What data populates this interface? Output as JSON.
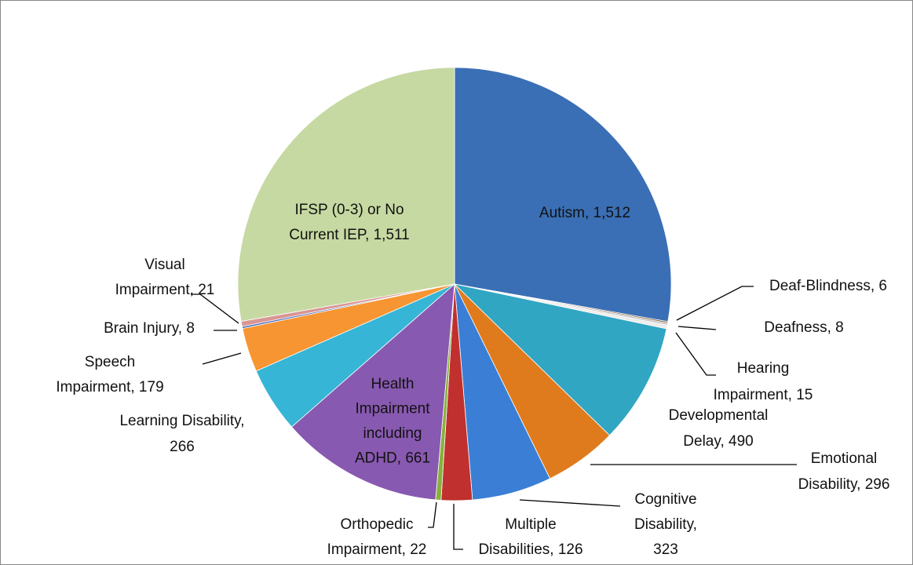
{
  "chart_data": {
    "type": "pie",
    "values": [
      1512,
      6,
      8,
      15,
      490,
      296,
      323,
      126,
      22,
      661,
      266,
      179,
      8,
      21,
      1511
    ],
    "value_labels": [
      "Autism, 1,512",
      "Deaf-Blindness, 6",
      "Deafness, 8",
      "Hearing Impairment, 15",
      "Developmental Delay, 490",
      "Emotional Disability, 296",
      "Cognitive Disability, 323",
      "Multiple Disabilities, 126",
      "Orthopedic Impairment, 22",
      "Health Impairment including ADHD, 661",
      "Learning Disability, 266",
      "Speech Impairment, 179",
      "Brain Injury, 8",
      "Visual Impairment, 21",
      "IFSP (0-3) or No Current IEP, 1,511"
    ],
    "colors": [
      "#3a6fb5",
      "#7f5a34",
      "#bfbfbf",
      "#ececec",
      "#31a6c2",
      "#e07b1d",
      "#3a7fd5",
      "#c0302e",
      "#88b13c",
      "#8859b0",
      "#36b5d6",
      "#f79532",
      "#4a6fbd",
      "#d99694",
      "#c6d9a2"
    ]
  }
}
